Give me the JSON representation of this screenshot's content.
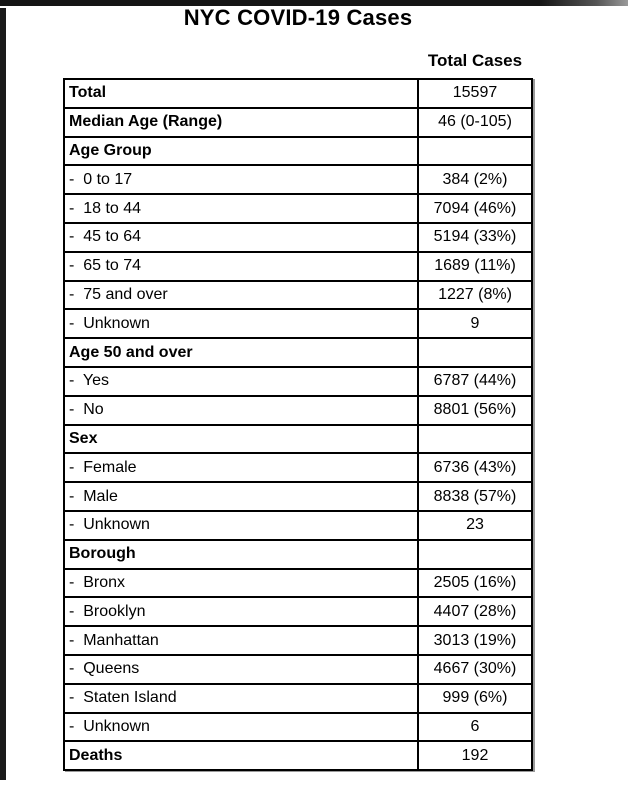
{
  "page": {
    "title": "NYC COVID-19 Cases"
  },
  "colors": {
    "text": "#000000",
    "table_border": "#000000",
    "page_edge": "#1a1a1a",
    "table_shadow": "#9a9a9a",
    "background": "#ffffff"
  },
  "table": {
    "column_header": "Total Cases",
    "rows": [
      {
        "label": "Total",
        "value": "15597",
        "bold": true
      },
      {
        "label": "Median Age (Range)",
        "value": "46 (0-105)",
        "bold": true
      },
      {
        "label": "Age Group",
        "value": "",
        "bold": true
      },
      {
        "label": "-  0 to 17",
        "value": "384 (2%)",
        "bold": false
      },
      {
        "label": "-  18 to 44",
        "value": "7094 (46%)",
        "bold": false
      },
      {
        "label": "-  45 to 64",
        "value": "5194 (33%)",
        "bold": false
      },
      {
        "label": "-  65 to 74",
        "value": "1689 (11%)",
        "bold": false
      },
      {
        "label": "-  75 and over",
        "value": "1227 (8%)",
        "bold": false
      },
      {
        "label": "-  Unknown",
        "value": "9",
        "bold": false
      },
      {
        "label": "Age 50 and over",
        "value": "",
        "bold": true
      },
      {
        "label": "-  Yes",
        "value": "6787 (44%)",
        "bold": false
      },
      {
        "label": "-  No",
        "value": "8801 (56%)",
        "bold": false
      },
      {
        "label": "Sex",
        "value": "",
        "bold": true
      },
      {
        "label": "-  Female",
        "value": "6736 (43%)",
        "bold": false
      },
      {
        "label": "-  Male",
        "value": "8838 (57%)",
        "bold": false
      },
      {
        "label": "-  Unknown",
        "value": "23",
        "bold": false
      },
      {
        "label": "Borough",
        "value": "",
        "bold": true
      },
      {
        "label": "-  Bronx",
        "value": "2505 (16%)",
        "bold": false
      },
      {
        "label": "-  Brooklyn",
        "value": "4407 (28%)",
        "bold": false
      },
      {
        "label": "-  Manhattan",
        "value": "3013 (19%)",
        "bold": false
      },
      {
        "label": "-  Queens",
        "value": "4667 (30%)",
        "bold": false
      },
      {
        "label": "-  Staten Island",
        "value": "999 (6%)",
        "bold": false
      },
      {
        "label": "-  Unknown",
        "value": "6",
        "bold": false
      },
      {
        "label": "Deaths",
        "value": "192",
        "bold": true
      }
    ]
  }
}
